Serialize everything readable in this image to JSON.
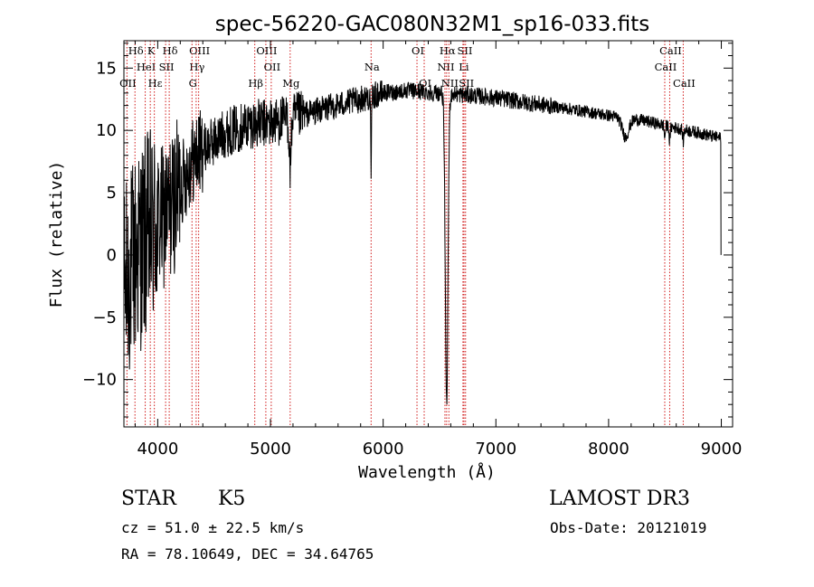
{
  "chart_data": {
    "type": "line",
    "title": "spec-56220-GAC080N32M1_sp16-033.fits",
    "xlabel": "Wavelength (Å)",
    "ylabel": "Flux (relative)",
    "xlim": [
      3700,
      9100
    ],
    "ylim": [
      -13.8,
      17.2
    ],
    "xticks": [
      4000,
      5000,
      6000,
      7000,
      8000,
      9000
    ],
    "yticks": [
      -10,
      -5,
      0,
      5,
      10,
      15
    ],
    "xtick_labels": [
      "4000",
      "5000",
      "6000",
      "7000",
      "8000",
      "9000"
    ],
    "ytick_labels": [
      "−10",
      "−5",
      "0",
      "5",
      "10",
      "15"
    ],
    "grid": false,
    "continuum": [
      [
        3700,
        -3
      ],
      [
        3800,
        0
      ],
      [
        3900,
        1.5
      ],
      [
        4000,
        2.5
      ],
      [
        4100,
        3.5
      ],
      [
        4200,
        5.5
      ],
      [
        4300,
        7.5
      ],
      [
        4400,
        8.5
      ],
      [
        4600,
        9.8
      ],
      [
        4800,
        10.5
      ],
      [
        5000,
        10.6
      ],
      [
        5200,
        11
      ],
      [
        5500,
        11.8
      ],
      [
        5800,
        12.5
      ],
      [
        6000,
        13
      ],
      [
        6200,
        13.2
      ],
      [
        6500,
        13
      ],
      [
        6800,
        12.8
      ],
      [
        7000,
        12.6
      ],
      [
        7300,
        12.2
      ],
      [
        7600,
        11.8
      ],
      [
        8000,
        11.2
      ],
      [
        8300,
        10.8
      ],
      [
        8600,
        10.2
      ],
      [
        8800,
        9.8
      ],
      [
        8980,
        9.4
      ]
    ],
    "features": [
      {
        "x": 5893,
        "depth": 7,
        "width": 3
      },
      {
        "x": 5175,
        "depth": 4,
        "width": 8
      },
      {
        "x": 6563,
        "depth": 25,
        "width": 12
      },
      {
        "x": 8150,
        "depth": 1.5,
        "width": 30
      },
      {
        "x": 8498,
        "depth": 1,
        "width": 5
      },
      {
        "x": 8542,
        "depth": 1.2,
        "width": 5
      },
      {
        "x": 8662,
        "depth": 1,
        "width": 5
      }
    ],
    "spectral_lines": [
      {
        "label": "Hδ",
        "x": 3798,
        "row": 0,
        "color": "#d11a1a"
      },
      {
        "label": "K",
        "x": 3934,
        "row": 0,
        "color": "#d11a1a"
      },
      {
        "label": "Hδ",
        "x": 4102,
        "row": 0,
        "color": "#d11a1a"
      },
      {
        "label": "OIII",
        "x": 4363,
        "row": 0,
        "color": "#d11a1a"
      },
      {
        "label": "OIII",
        "x": 4959,
        "row": 0,
        "color": "#d11a1a"
      },
      {
        "label": "OI",
        "x": 6300,
        "row": 0,
        "color": "#d11a1a"
      },
      {
        "label": "Hα",
        "x": 6563,
        "row": 0,
        "color": "#d11a1a"
      },
      {
        "label": "SII",
        "x": 6717,
        "row": 0,
        "color": "#d11a1a"
      },
      {
        "label": "CaII",
        "x": 8542,
        "row": 0,
        "color": "#d11a1a"
      },
      {
        "label": "HeI",
        "x": 3889,
        "row": 1,
        "color": "#d11a1a"
      },
      {
        "label": "SII",
        "x": 4070,
        "row": 1,
        "color": "#d11a1a"
      },
      {
        "label": "Hγ",
        "x": 4341,
        "row": 1,
        "color": "#d11a1a"
      },
      {
        "label": "OII",
        "x": 5007,
        "row": 1,
        "color": "#d11a1a"
      },
      {
        "label": "Na",
        "x": 5893,
        "row": 1,
        "color": "#d11a1a"
      },
      {
        "label": "NII",
        "x": 6548,
        "row": 1,
        "color": "#d11a1a"
      },
      {
        "label": "Li",
        "x": 6708,
        "row": 1,
        "color": "#d11a1a"
      },
      {
        "label": "CaII",
        "x": 8498,
        "row": 1,
        "color": "#d11a1a"
      },
      {
        "label": "OII",
        "x": 3727,
        "row": 2,
        "color": "#d11a1a"
      },
      {
        "label": "Hε",
        "x": 3970,
        "row": 2,
        "color": "#d11a1a"
      },
      {
        "label": "G",
        "x": 4304,
        "row": 2,
        "color": "#d11a1a"
      },
      {
        "label": "Hβ",
        "x": 4861,
        "row": 2,
        "color": "#d11a1a"
      },
      {
        "label": "Mg",
        "x": 5175,
        "row": 2,
        "color": "#d11a1a"
      },
      {
        "label": "OI",
        "x": 6364,
        "row": 2,
        "color": "#d11a1a"
      },
      {
        "label": "NII",
        "x": 6583,
        "row": 2,
        "color": "#d11a1a"
      },
      {
        "label": "SII",
        "x": 6731,
        "row": 2,
        "color": "#d11a1a"
      },
      {
        "label": "CaII",
        "x": 8662,
        "row": 2,
        "color": "#d11a1a"
      }
    ]
  },
  "info": {
    "class": "STAR",
    "subclass": "K5",
    "survey": "LAMOST DR3",
    "cz": "cz = 51.0 ± 22.5 km/s",
    "obs_date": "Obs-Date: 20121019",
    "coords": "RA =  78.10649, DEC =  34.64765"
  }
}
